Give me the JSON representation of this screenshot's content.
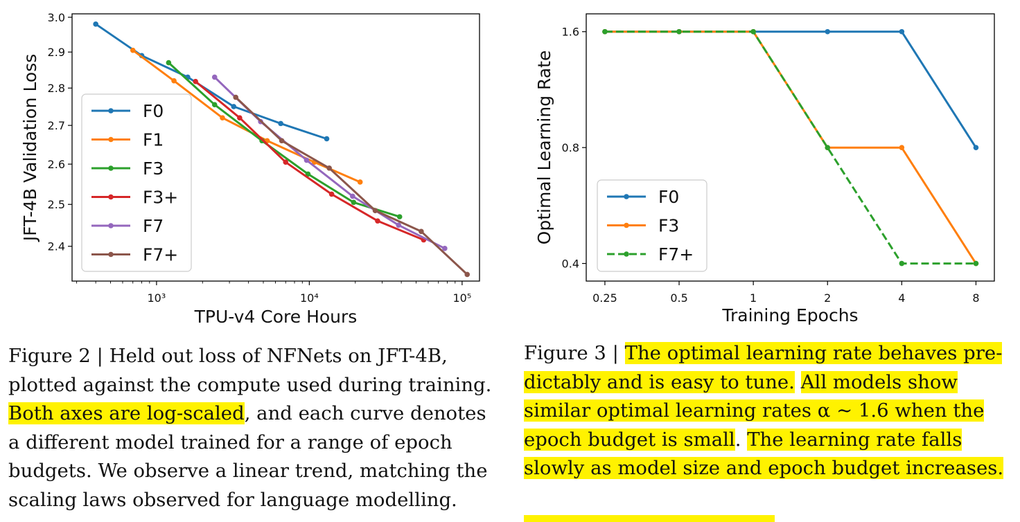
{
  "chart_data": [
    {
      "type": "line",
      "xlabel": "TPU-v4 Core Hours",
      "ylabel": "JFT-4B Validation Loss",
      "xscale": "log",
      "yscale": "log",
      "xlim": [
        280,
        130000
      ],
      "ylim": [
        2.32,
        3.01
      ],
      "xticks": [
        1000,
        10000,
        100000
      ],
      "xtick_labels": [
        "10³",
        "10⁴",
        "10⁵"
      ],
      "yticks": [
        3.0,
        2.9,
        2.8,
        2.7,
        2.6,
        2.5,
        2.4
      ],
      "ytick_labels": [
        "3.0",
        "2.9",
        "2.8",
        "2.7",
        "2.6",
        "2.5",
        "2.4"
      ],
      "legend_position": "center-left",
      "grid": false,
      "series": [
        {
          "name": "F0",
          "color": "#1f77b4",
          "x": [
            400,
            800,
            1600,
            3200,
            6500,
            13000
          ],
          "y": [
            2.98,
            2.89,
            2.83,
            2.75,
            2.705,
            2.665
          ]
        },
        {
          "name": "F1",
          "color": "#ff7f0e",
          "x": [
            700,
            1300,
            2700,
            5300,
            10800,
            21500
          ],
          "y": [
            2.905,
            2.82,
            2.72,
            2.66,
            2.605,
            2.555
          ]
        },
        {
          "name": "F3",
          "color": "#2ca02c",
          "x": [
            1200,
            2400,
            4900,
            9800,
            19500,
            39000
          ],
          "y": [
            2.87,
            2.755,
            2.66,
            2.575,
            2.505,
            2.47
          ]
        },
        {
          "name": "F3+",
          "color": "#d62728",
          "x": [
            1800,
            3500,
            7000,
            14000,
            28000,
            56000
          ],
          "y": [
            2.818,
            2.72,
            2.605,
            2.525,
            2.46,
            2.415
          ]
        },
        {
          "name": "F7",
          "color": "#9467bd",
          "x": [
            2400,
            4800,
            9600,
            19200,
            38400,
            77000
          ],
          "y": [
            2.83,
            2.71,
            2.61,
            2.52,
            2.45,
            2.395
          ]
        },
        {
          "name": "F7+",
          "color": "#8c564b",
          "x": [
            3300,
            6600,
            13500,
            27000,
            54000,
            108000
          ],
          "y": [
            2.775,
            2.66,
            2.59,
            2.485,
            2.435,
            2.335
          ]
        }
      ]
    },
    {
      "type": "line",
      "xlabel": "Training Epochs",
      "ylabel": "Optimal Learning Rate",
      "xscale": "log2",
      "yscale": "log",
      "xlim": [
        0.21,
        9.5
      ],
      "ylim": [
        0.36,
        1.78
      ],
      "xticks": [
        0.25,
        0.5,
        1,
        2,
        4,
        8
      ],
      "xtick_labels": [
        "0.25",
        "0.5",
        "1",
        "2",
        "4",
        "8"
      ],
      "yticks": [
        1.6,
        0.8,
        0.4
      ],
      "ytick_labels": [
        "1.6",
        "0.8",
        "0.4"
      ],
      "legend_position": "lower-left",
      "grid": false,
      "series": [
        {
          "name": "F0",
          "color": "#1f77b4",
          "dash": false,
          "x": [
            0.25,
            0.5,
            1,
            2,
            4,
            8
          ],
          "y": [
            1.6,
            1.6,
            1.6,
            1.6,
            1.6,
            0.8
          ]
        },
        {
          "name": "F3",
          "color": "#ff7f0e",
          "dash": false,
          "x": [
            0.25,
            0.5,
            1,
            2,
            4,
            8
          ],
          "y": [
            1.6,
            1.6,
            1.6,
            0.8,
            0.8,
            0.4
          ]
        },
        {
          "name": "F7+",
          "color": "#2ca02c",
          "dash": true,
          "x": [
            0.25,
            0.5,
            1,
            2,
            4,
            8
          ],
          "y": [
            1.6,
            1.6,
            1.6,
            0.8,
            0.4,
            0.4
          ]
        }
      ]
    }
  ],
  "captions": {
    "left": {
      "lines": [
        [
          {
            "text": "Figure 2 | Held out loss of NFNets on JFT-4B,",
            "hl": false
          }
        ],
        [
          {
            "text": "plotted against the compute used during training.",
            "hl": false
          }
        ],
        [
          {
            "text": "Both axes are log-scaled",
            "hl": true
          },
          {
            "text": ", and each curve denotes",
            "hl": false
          }
        ],
        [
          {
            "text": "a different model trained for a range of epoch",
            "hl": false
          }
        ],
        [
          {
            "text": "budgets. We observe a linear trend, matching the",
            "hl": false
          }
        ],
        [
          {
            "text": "scaling laws observed for language modelling.",
            "hl": false
          }
        ]
      ]
    },
    "right": {
      "lines": [
        [
          {
            "text": "Figure 3 | ",
            "hl": false
          },
          {
            "text": "The optimal learning rate behaves pre-",
            "hl": true
          }
        ],
        [
          {
            "text": "dictably and is easy to tune.",
            "hl": true
          },
          {
            "text": "  ",
            "hl": false
          },
          {
            "text": "All models show",
            "hl": true
          }
        ],
        [
          {
            "text": "similar optimal learning rates α ∼ 1.6 when the",
            "hl": true
          }
        ],
        [
          {
            "text": "epoch budget is small",
            "hl": true
          },
          {
            "text": ".  ",
            "hl": false
          },
          {
            "text": "The learning rate falls",
            "hl": true
          }
        ],
        [
          {
            "text": "slowly as model size and epoch budget increases.",
            "hl": true
          }
        ]
      ]
    }
  }
}
